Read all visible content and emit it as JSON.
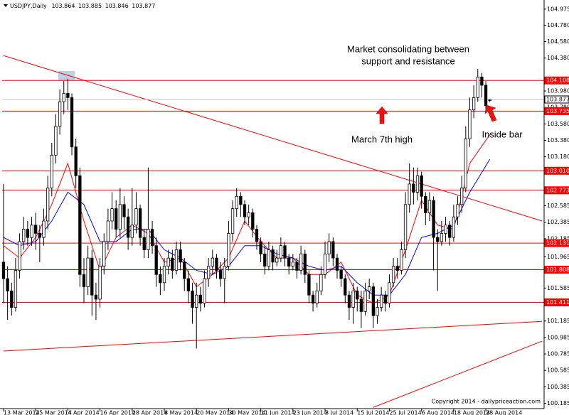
{
  "chart_data": {
    "type": "candlestick",
    "title": "USDJPY,Daily",
    "up_color": "#ffffff",
    "down_color": "#000000",
    "wick_color": "#000000",
    "xlim": [
      -0.35,
      134.5
    ],
    "xticks": [
      {
        "value": 0,
        "label": "13 Mar 2014"
      },
      {
        "value": 8,
        "label": "25 Mar 2014"
      },
      {
        "value": 16,
        "label": "4 Apr 2014"
      },
      {
        "value": 24,
        "label": "16 Apr 2014"
      },
      {
        "value": 32,
        "label": "28 Apr 2014"
      },
      {
        "value": 40,
        "label": "8 May 2014"
      },
      {
        "value": 48,
        "label": "20 May 2014"
      },
      {
        "value": 56,
        "label": "30 May 2014"
      },
      {
        "value": 64,
        "label": "11 Jun 2014"
      },
      {
        "value": 72,
        "label": "23 Jun 2014"
      },
      {
        "value": 80,
        "label": "3 Jul 2014"
      },
      {
        "value": 88,
        "label": "15 Jul 2014"
      },
      {
        "value": 96,
        "label": "25 Jul 2014"
      },
      {
        "value": 104,
        "label": "6 Aug 2014"
      },
      {
        "value": 112,
        "label": "18 Aug 2014"
      },
      {
        "value": 120,
        "label": "28 Aug 2014"
      }
    ],
    "ylim": [
      100.12,
      105.06
    ],
    "yticks": [
      104.975,
      {
        "value": 104.78,
        "label": "104.780"
      },
      {
        "value": 104.58,
        "label": "104.580"
      },
      {
        "value": 104.38,
        "label": "104.380"
      },
      {
        "value": 103.98,
        "label": "103.980"
      },
      {
        "value": 103.78,
        "label": "103.780"
      },
      {
        "value": 103.58,
        "label": "103.580"
      },
      {
        "value": 103.38,
        "label": "103.380"
      },
      {
        "value": 103.18,
        "label": "103.180"
      },
      102.585,
      102.385,
      102.185,
      101.965,
      101.585,
      101.185,
      100.985,
      100.785,
      100.585,
      100.385,
      100.185
    ],
    "open": [
      101.9,
      101.7,
      101.55,
      101.35,
      101.8,
      102.15,
      102.3,
      102.2,
      102.35,
      102.25,
      102.2,
      102.4,
      102.8,
      103.2,
      103.55,
      103.85,
      103.95,
      103.9,
      103.3,
      102.95,
      101.75,
      101.6,
      101.95,
      101.5,
      101.45,
      101.85,
      102.15,
      102.4,
      102.55,
      102.3,
      102.6,
      102.45,
      102.2,
      102.35,
      102.55,
      102.2,
      102.05,
      102.3,
      102.1,
      101.75,
      101.65,
      101.85,
      101.95,
      101.8,
      102.05,
      101.9,
      101.7,
      101.55,
      101.35,
      101.5,
      101.4,
      101.7,
      101.85,
      101.95,
      101.8,
      101.7,
      101.85,
      102.25,
      102.55,
      102.7,
      102.6,
      102.45,
      102.5,
      102.3,
      102.15,
      102,
      101.85,
      102.05,
      101.9,
      101.95,
      102.1,
      101.95,
      101.85,
      101.9,
      101.8,
      102,
      101.75,
      101.5,
      101.4,
      101.55,
      101.75,
      102,
      102.15,
      101.95,
      101.8,
      101.7,
      101.5,
      101.35,
      101.55,
      101.45,
      101.3,
      101.55,
      101.6,
      101.25,
      101.35,
      101.5,
      101.4,
      101.65,
      101.85,
      101.8,
      102.05,
      102.6,
      102.85,
      102.75,
      102.95,
      102.7,
      102.5,
      102.65,
      102.2,
      102.15,
      102.25,
      102.35,
      102.2,
      102.45,
      102.6,
      102.8,
      103.4,
      103.75,
      103.9,
      104.15,
      104.05,
      103.864
    ],
    "high": [
      102.85,
      101.85,
      101.65,
      101.95,
      102.25,
      102.45,
      102.4,
      102.45,
      102.5,
      102.35,
      102.55,
      102.95,
      103.35,
      103.7,
      104,
      104.1,
      104.13,
      103.95,
      103.4,
      103.05,
      101.95,
      102.1,
      102.05,
      101.65,
      101.95,
      102.25,
      102.55,
      102.75,
      102.65,
      102.8,
      102.7,
      102.55,
      102.8,
      102.75,
      102.6,
      102.3,
      103.05,
      102.4,
      102.2,
      101.85,
      101.95,
      102.05,
      102.05,
      102.15,
      102.15,
      101.95,
      101.8,
      101.65,
      101.65,
      101.6,
      101.8,
      101.95,
      102.05,
      102,
      101.9,
      101.95,
      102.4,
      102.65,
      102.8,
      102.75,
      102.65,
      102.6,
      102.55,
      102.35,
      102.2,
      102.1,
      102.15,
      102.1,
      102.05,
      102.2,
      102.15,
      102,
      102,
      101.95,
      102.1,
      102.05,
      101.8,
      101.55,
      101.65,
      101.85,
      102.15,
      102.25,
      102.2,
      102,
      101.85,
      101.75,
      101.55,
      101.65,
      101.6,
      101.55,
      101.65,
      101.7,
      101.65,
      101.45,
      101.6,
      101.55,
      101.75,
      101.95,
      101.95,
      102.15,
      102.75,
      103.1,
      103.05,
      103.05,
      103,
      102.75,
      102.75,
      102.7,
      102.3,
      102.4,
      102.45,
      102.4,
      102.6,
      102.7,
      102.95,
      103.55,
      103.9,
      104.05,
      104.25,
      104.2,
      104.1,
      103.885
    ],
    "low": [
      101.4,
      101.2,
      101.25,
      101.3,
      101.7,
      102.05,
      102.1,
      102.1,
      102.05,
      101.9,
      102.1,
      102.3,
      102.7,
      103.1,
      103.45,
      103.7,
      103.75,
      103.2,
      102.8,
      101.6,
      101.4,
      101.5,
      101.25,
      101.2,
      101.35,
      101.75,
      102.05,
      102.3,
      102.2,
      102.2,
      102.3,
      102.05,
      102.1,
      102.25,
      102.1,
      101.95,
      101.95,
      102,
      101.6,
      101.5,
      101.55,
      101.75,
      101.7,
      101.75,
      101.8,
      101.55,
      101.4,
      101.15,
      100.85,
      101.3,
      101.35,
      101.6,
      101.75,
      101.7,
      101.6,
      101.4,
      101.8,
      102.15,
      102.45,
      102.45,
      102.35,
      102.35,
      102.2,
      102.05,
      101.9,
      101.75,
      101.8,
      101.8,
      101.85,
      101.9,
      101.85,
      101.75,
      101.8,
      101.7,
      101.75,
      101.65,
      101.4,
      101.3,
      101.35,
      101.5,
      101.7,
      101.9,
      101.85,
      101.7,
      101.6,
      101.4,
      101.2,
      101.15,
      101.3,
      101.1,
      101.25,
      101.45,
      101.1,
      101.15,
      101.3,
      101.3,
      101.35,
      101.6,
      101.7,
      101.75,
      101.95,
      102.5,
      102.6,
      102.65,
      102.55,
      102.35,
      102.4,
      101.8,
      101.55,
      102.1,
      102.15,
      102.1,
      102.15,
      102.35,
      102.5,
      102.75,
      103.3,
      103.65,
      103.85,
      103.9,
      103.75,
      103.846
    ],
    "close": [
      101.7,
      101.55,
      101.35,
      101.8,
      102.15,
      102.3,
      102.2,
      102.35,
      102.25,
      102.2,
      102.4,
      102.8,
      103.2,
      103.55,
      103.85,
      103.95,
      103.9,
      103.3,
      102.95,
      101.75,
      101.6,
      101.95,
      101.5,
      101.45,
      101.85,
      102.15,
      102.4,
      102.55,
      102.3,
      102.6,
      102.45,
      102.2,
      102.35,
      102.55,
      102.2,
      102.05,
      102.3,
      102.1,
      101.75,
      101.65,
      101.85,
      101.95,
      101.8,
      102.05,
      101.9,
      101.7,
      101.55,
      101.35,
      101.5,
      101.4,
      101.7,
      101.85,
      101.95,
      101.8,
      101.7,
      101.85,
      102.25,
      102.55,
      102.7,
      102.6,
      102.45,
      102.5,
      102.3,
      102.15,
      102,
      101.85,
      102.05,
      101.9,
      101.95,
      102.1,
      101.95,
      101.85,
      101.9,
      101.8,
      102,
      101.75,
      101.5,
      101.4,
      101.55,
      101.75,
      102,
      102.15,
      101.95,
      101.8,
      101.7,
      101.5,
      101.35,
      101.55,
      101.45,
      101.3,
      101.55,
      101.6,
      101.25,
      101.35,
      101.5,
      101.4,
      101.65,
      101.85,
      101.8,
      102.05,
      102.6,
      102.85,
      102.75,
      102.95,
      102.7,
      102.5,
      102.65,
      102.2,
      102.15,
      102.25,
      102.35,
      102.2,
      102.45,
      102.6,
      102.8,
      103.4,
      103.75,
      103.9,
      104.15,
      104.05,
      103.8,
      103.877
    ],
    "moving_averages": [
      {
        "color": "#ff0000",
        "x": [
          0,
          4,
          8,
          12,
          16,
          20,
          24,
          28,
          32,
          36,
          40,
          44,
          48,
          52,
          56,
          60,
          64,
          68,
          72,
          76,
          80,
          84,
          88,
          92,
          96,
          100,
          104,
          108,
          112,
          116,
          121
        ],
        "values": [
          102.1,
          101.95,
          102.2,
          102.6,
          103.1,
          102.4,
          101.8,
          102.2,
          102.35,
          102.25,
          101.9,
          101.95,
          101.6,
          101.75,
          101.95,
          102.4,
          102.15,
          101.95,
          101.95,
          101.75,
          101.75,
          101.9,
          101.5,
          101.4,
          101.5,
          102.05,
          102.65,
          102.35,
          102.3,
          103.1,
          103.45
        ]
      },
      {
        "color": "#0000ff",
        "x": [
          0,
          4,
          8,
          12,
          16,
          20,
          24,
          28,
          32,
          36,
          40,
          44,
          48,
          52,
          56,
          60,
          64,
          68,
          72,
          76,
          80,
          84,
          88,
          92,
          96,
          100,
          104,
          108,
          112,
          116,
          121
        ],
        "values": [
          102.2,
          102.1,
          102.15,
          102.4,
          102.75,
          102.6,
          102.15,
          102.15,
          102.3,
          102.3,
          102.05,
          101.95,
          101.8,
          101.75,
          101.85,
          102.1,
          102.1,
          102,
          101.95,
          101.85,
          101.8,
          101.85,
          101.65,
          101.5,
          101.5,
          101.75,
          102.2,
          102.25,
          102.35,
          102.75,
          103.15
        ]
      }
    ],
    "trendlines": [
      {
        "color": "#ff0000",
        "x": [
          0,
          134
        ],
        "values": [
          104.41,
          102.4
        ]
      },
      {
        "color": "#ff0000",
        "x": [
          0,
          134
        ],
        "values": [
          100.82,
          101.18
        ]
      },
      {
        "color": "#ff0000",
        "x": [
          92,
          134
        ],
        "values": [
          100.135,
          100.94
        ]
      }
    ],
    "levels": [
      {
        "value": 104.108,
        "color": "#ff0000"
      },
      {
        "value": 103.877,
        "color": "#c0c0c0"
      },
      {
        "value": 103.735,
        "color": "#ff0000"
      },
      {
        "value": 103.01,
        "label": "103.010",
        "color": "#ff0000"
      },
      {
        "value": 102.773,
        "color": "#ff0000"
      },
      {
        "value": 102.131,
        "color": "#ff0000"
      },
      {
        "value": 101.808,
        "color": "#ff0000"
      },
      {
        "value": 101.411,
        "color": "#ff0000"
      }
    ],
    "annotations": [
      "Market consolidating between",
      "support and resistance",
      "March 7th high",
      "Inside bar"
    ],
    "copyright": "Copyright 2014 - dailypriceaction.com"
  }
}
